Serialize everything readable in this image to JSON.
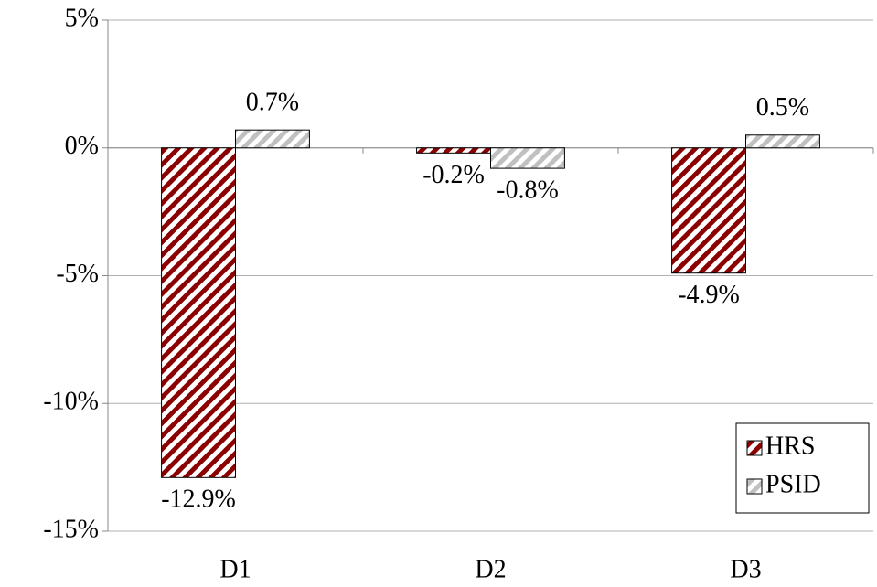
{
  "chart_data": {
    "type": "bar",
    "categories": [
      "D1",
      "D2",
      "D3"
    ],
    "series": [
      {
        "name": "HRS",
        "color": "#8b0000",
        "values": [
          -12.9,
          -0.2,
          -4.9
        ],
        "value_labels": [
          "-12.9%",
          "-0.2%",
          "-4.9%"
        ]
      },
      {
        "name": "PSID",
        "color": "#c0c0c0",
        "values": [
          0.7,
          -0.8,
          0.5
        ],
        "value_labels": [
          "0.7%",
          "-0.8%",
          "0.5%"
        ]
      }
    ],
    "ylim": [
      -15,
      5
    ],
    "yticks": [
      {
        "value": -15,
        "label": "-15%"
      },
      {
        "value": -10,
        "label": "-10%"
      },
      {
        "value": -5,
        "label": "-5%"
      },
      {
        "value": 0,
        "label": "0%"
      },
      {
        "value": 5,
        "label": "5%"
      }
    ],
    "grid": true,
    "legend": "lower right"
  }
}
